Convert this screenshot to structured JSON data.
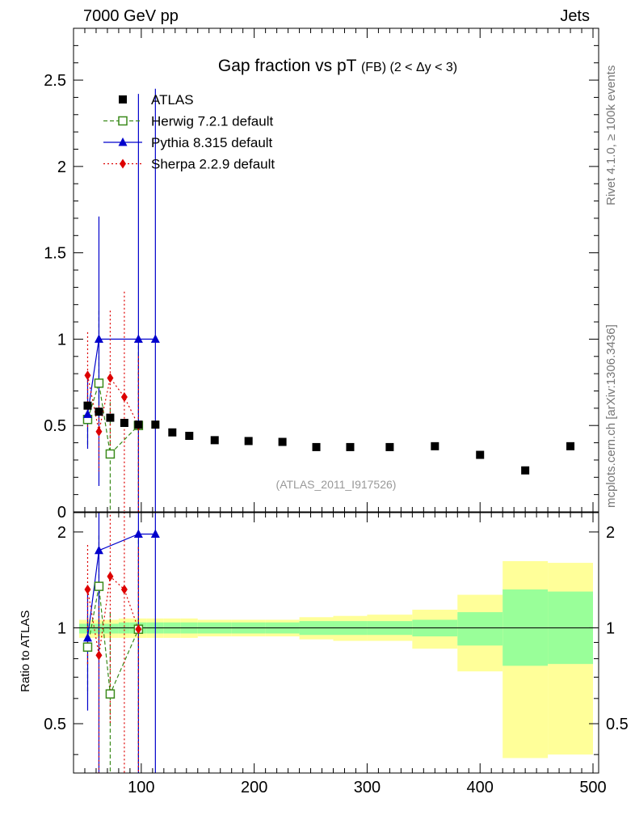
{
  "header": {
    "energy_label": "7000 GeV pp",
    "category_label": "Jets",
    "rivet_label": "Rivet 4.1.0, ≥ 100k events",
    "site_label": "mcplots.cern.ch [arXiv:1306.3436]"
  },
  "chart_data": {
    "type": "scatter",
    "title_main": "Gap fraction vs pT",
    "title_sub": "(FB) (2 < Δy < 3)",
    "watermark": "(ATLAS_2011_I917526)",
    "ratio_ylabel": "Ratio to ATLAS",
    "xlim": [
      40,
      505
    ],
    "main_ylim": [
      0,
      2.8
    ],
    "ratio_ylim": [
      0.35,
      2.3
    ],
    "x_ticks": [
      100,
      200,
      300,
      400,
      500
    ],
    "x_tick_labels": [
      "100",
      "200",
      "300",
      "400",
      "500"
    ],
    "main_y_ticks": [
      0,
      0.5,
      1,
      1.5,
      2,
      2.5
    ],
    "main_y_tick_labels": [
      "0",
      "0.5",
      "1",
      "1.5",
      "2",
      "2.5"
    ],
    "ratio_y_ticks": [
      0.5,
      1,
      2
    ],
    "ratio_y_tick_labels": [
      "0.5",
      "1",
      "2"
    ],
    "legend": [
      {
        "name": "ATLAS",
        "color": "#000000",
        "marker": "square",
        "line": "none"
      },
      {
        "name": "Herwig 7.2.1 default",
        "color": "#3a8a1a",
        "marker": "open-square",
        "line": "dashed"
      },
      {
        "name": "Pythia 8.315 default",
        "color": "#0000cc",
        "marker": "triangle",
        "line": "solid"
      },
      {
        "name": "Sherpa 2.2.9 default",
        "color": "#dd0000",
        "marker": "diamond",
        "line": "dotted"
      }
    ],
    "atlas": {
      "x": [
        52.5,
        62.5,
        72.5,
        85,
        97.5,
        112.5,
        127.5,
        142.5,
        165,
        195,
        225,
        255,
        285,
        320,
        360,
        400,
        440,
        480
      ],
      "y": [
        0.615,
        0.58,
        0.545,
        0.515,
        0.505,
        0.505,
        0.46,
        0.44,
        0.415,
        0.41,
        0.405,
        0.375,
        0.375,
        0.375,
        0.38,
        0.33,
        0.24,
        0.38
      ]
    },
    "ratio_bands": [
      {
        "x0": 45,
        "x1": 60,
        "g": [
          0.96,
          1.03
        ],
        "y": [
          0.93,
          1.06
        ]
      },
      {
        "x0": 60,
        "x1": 65,
        "g": [
          0.96,
          1.03
        ],
        "y": [
          0.93,
          1.06
        ]
      },
      {
        "x0": 65,
        "x1": 80,
        "g": [
          0.96,
          1.03
        ],
        "y": [
          0.93,
          1.06
        ]
      },
      {
        "x0": 80,
        "x1": 90,
        "g": [
          0.96,
          1.04
        ],
        "y": [
          0.93,
          1.07
        ]
      },
      {
        "x0": 90,
        "x1": 105,
        "g": [
          0.96,
          1.04
        ],
        "y": [
          0.93,
          1.07
        ]
      },
      {
        "x0": 105,
        "x1": 120,
        "g": [
          0.96,
          1.04
        ],
        "y": [
          0.93,
          1.07
        ]
      },
      {
        "x0": 120,
        "x1": 135,
        "g": [
          0.96,
          1.04
        ],
        "y": [
          0.93,
          1.07
        ]
      },
      {
        "x0": 135,
        "x1": 150,
        "g": [
          0.96,
          1.04
        ],
        "y": [
          0.93,
          1.07
        ]
      },
      {
        "x0": 150,
        "x1": 180,
        "g": [
          0.96,
          1.04
        ],
        "y": [
          0.94,
          1.06
        ]
      },
      {
        "x0": 180,
        "x1": 210,
        "g": [
          0.96,
          1.04
        ],
        "y": [
          0.94,
          1.06
        ]
      },
      {
        "x0": 210,
        "x1": 240,
        "g": [
          0.96,
          1.04
        ],
        "y": [
          0.94,
          1.06
        ]
      },
      {
        "x0": 240,
        "x1": 270,
        "g": [
          0.95,
          1.05
        ],
        "y": [
          0.92,
          1.08
        ]
      },
      {
        "x0": 270,
        "x1": 300,
        "g": [
          0.95,
          1.05
        ],
        "y": [
          0.91,
          1.09
        ]
      },
      {
        "x0": 300,
        "x1": 340,
        "g": [
          0.95,
          1.05
        ],
        "y": [
          0.91,
          1.1
        ]
      },
      {
        "x0": 340,
        "x1": 380,
        "g": [
          0.94,
          1.06
        ],
        "y": [
          0.86,
          1.14
        ]
      },
      {
        "x0": 380,
        "x1": 420,
        "g": [
          0.88,
          1.12
        ],
        "y": [
          0.73,
          1.27
        ]
      },
      {
        "x0": 420,
        "x1": 460,
        "g": [
          0.76,
          1.32
        ],
        "y": [
          0.39,
          1.62
        ]
      },
      {
        "x0": 460,
        "x1": 500,
        "g": [
          0.77,
          1.3
        ],
        "y": [
          0.4,
          1.6
        ]
      }
    ],
    "herwig": {
      "x": [
        52.5,
        62.5,
        72.5,
        97.5
      ],
      "y": [
        0.535,
        0.745,
        0.335,
        0.5
      ],
      "err_lo": [
        0.16,
        0.22,
        0.33,
        0.5
      ],
      "err_hi": [
        0.14,
        0.42,
        0.3,
        0.5
      ],
      "ratio": [
        0.87,
        1.35,
        0.62,
        0.99
      ],
      "ratio_err_lo": [
        0.25,
        0.5,
        0.6,
        0.99
      ],
      "ratio_err_hi": [
        0.22,
        0.6,
        0.5,
        0.9
      ]
    },
    "pythia": {
      "x": [
        52.5,
        62.5,
        97.5,
        112.5
      ],
      "y": [
        0.565,
        1.0,
        1.0,
        1.0
      ],
      "err_lo": [
        0.2,
        0.85,
        1.0,
        1.0
      ],
      "err_hi": [
        0.24,
        0.71,
        1.42,
        1.45
      ],
      "ratio": [
        0.93,
        1.75,
        1.97,
        1.97
      ],
      "ratio_err_lo": [
        0.38,
        1.5,
        1.97,
        1.97
      ],
      "ratio_err_hi": [
        0.4,
        1.5,
        2.5,
        2.5
      ]
    },
    "sherpa": {
      "x": [
        52.5,
        62.5,
        72.5,
        85,
        97.5
      ],
      "y": [
        0.79,
        0.465,
        0.775,
        0.665,
        0.5
      ],
      "err_lo": [
        0.3,
        0.23,
        0.4,
        0.66,
        0.5
      ],
      "err_hi": [
        0.25,
        0.15,
        0.39,
        0.61,
        0.4
      ],
      "ratio": [
        1.32,
        0.82,
        1.45,
        1.32,
        0.99
      ],
      "ratio_err_lo": [
        0.55,
        0.5,
        0.95,
        1.32,
        0.99
      ],
      "ratio_err_hi": [
        0.5,
        0.35,
        0.95,
        1.2,
        0.8
      ]
    }
  }
}
